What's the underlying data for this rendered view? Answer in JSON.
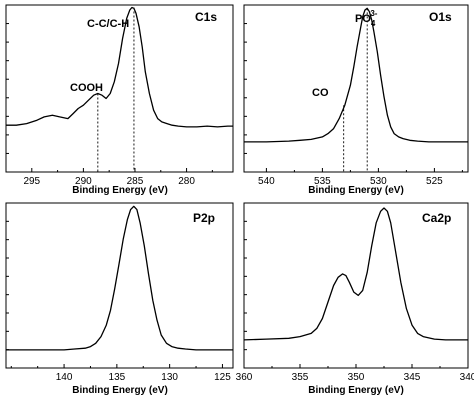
{
  "chart_data": [
    {
      "id": "c1s",
      "type": "line",
      "title": "C1s",
      "xlabel": "Binding Energy (eV)",
      "ylabel": "",
      "xlim": [
        297.5,
        275.5
      ],
      "ylim": [
        0,
        1.0
      ],
      "x_reversed": true,
      "xticks": [
        295,
        290,
        285,
        280
      ],
      "xtick_labels": [
        "295",
        "290",
        "285",
        "280"
      ],
      "series": [
        {
          "x": [
            297.5,
            296.5,
            295.5,
            294.5,
            293.8,
            293.0,
            292.3,
            291.5,
            291.0,
            290.5,
            290.0,
            289.5,
            289.0,
            288.6,
            288.2,
            287.8,
            287.4,
            287.0,
            286.6,
            286.2,
            285.8,
            285.5,
            285.3,
            285.1,
            284.9,
            284.6,
            284.3,
            284.0,
            283.6,
            283.2,
            282.8,
            282.4,
            281.9,
            281.4,
            280.8,
            280.0,
            279.0,
            278.0,
            277.0,
            276.0,
            275.5
          ],
          "y": [
            0.28,
            0.28,
            0.29,
            0.31,
            0.33,
            0.34,
            0.33,
            0.32,
            0.35,
            0.38,
            0.4,
            0.43,
            0.46,
            0.47,
            0.46,
            0.44,
            0.47,
            0.54,
            0.65,
            0.8,
            0.92,
            0.97,
            0.985,
            0.98,
            0.95,
            0.87,
            0.75,
            0.6,
            0.47,
            0.37,
            0.32,
            0.3,
            0.29,
            0.28,
            0.275,
            0.27,
            0.27,
            0.275,
            0.27,
            0.275,
            0.275
          ]
        }
      ],
      "annotations": [
        {
          "text": "COOH",
          "x": 288.6,
          "y": 0.47
        },
        {
          "text": "C-C/C-H",
          "x": 285.1,
          "y": 0.985
        }
      ]
    },
    {
      "id": "o1s",
      "type": "line",
      "title": "O1s",
      "xlabel": "Binding Energy (eV)",
      "ylabel": "",
      "xlim": [
        542,
        522
      ],
      "ylim": [
        0,
        1.0
      ],
      "x_reversed": true,
      "xticks": [
        540,
        535,
        530,
        525
      ],
      "xtick_labels": [
        "540",
        "535",
        "530",
        "525"
      ],
      "series": [
        {
          "x": [
            542,
            540,
            538,
            537,
            536,
            535,
            534.5,
            534,
            533.5,
            533,
            532.5,
            532.2,
            531.9,
            531.6,
            531.4,
            531.2,
            531.0,
            530.8,
            530.6,
            530.4,
            530.1,
            529.8,
            529.5,
            529.2,
            528.9,
            528.6,
            528.2,
            527.8,
            527.2,
            526.5,
            525.5,
            524.5,
            523.5,
            522.5,
            522
          ],
          "y": [
            0.18,
            0.18,
            0.185,
            0.19,
            0.195,
            0.21,
            0.23,
            0.26,
            0.32,
            0.4,
            0.52,
            0.63,
            0.75,
            0.86,
            0.93,
            0.97,
            0.98,
            0.96,
            0.91,
            0.84,
            0.72,
            0.58,
            0.45,
            0.34,
            0.27,
            0.23,
            0.21,
            0.2,
            0.19,
            0.185,
            0.18,
            0.18,
            0.18,
            0.18,
            0.18
          ]
        }
      ],
      "annotations": [
        {
          "text": "CO",
          "x": 533.1,
          "y": 0.4
        },
        {
          "text": "PO",
          "x": 531.0,
          "y": 0.98
        }
      ]
    },
    {
      "id": "p2p",
      "type": "line",
      "title": "P2p",
      "xlabel": "Binding Energy (eV)",
      "ylabel": "",
      "xlim": [
        145.5,
        124
      ],
      "ylim": [
        0,
        1.0
      ],
      "x_reversed": true,
      "xticks": [
        140,
        135,
        130,
        125
      ],
      "xtick_labels": [
        "140",
        "135",
        "130",
        "125"
      ],
      "series": [
        {
          "x": [
            145.5,
            143.5,
            141.5,
            140,
            139,
            138,
            137.5,
            137,
            136.5,
            136,
            135.6,
            135.2,
            134.8,
            134.4,
            134.0,
            133.7,
            133.4,
            133.1,
            132.8,
            132.4,
            132.0,
            131.6,
            131.2,
            130.8,
            130.3,
            129.8,
            129.2,
            128.5,
            127.5,
            126.5,
            125.5,
            124.5,
            124
          ],
          "y": [
            0.11,
            0.11,
            0.11,
            0.11,
            0.115,
            0.12,
            0.13,
            0.15,
            0.19,
            0.26,
            0.35,
            0.48,
            0.63,
            0.78,
            0.9,
            0.96,
            0.98,
            0.96,
            0.88,
            0.74,
            0.57,
            0.41,
            0.29,
            0.2,
            0.15,
            0.13,
            0.12,
            0.115,
            0.11,
            0.11,
            0.11,
            0.11,
            0.11
          ]
        }
      ],
      "annotations": []
    },
    {
      "id": "ca2p",
      "type": "line",
      "title": "Ca2p",
      "xlabel": "Binding Energy (eV)",
      "ylabel": "",
      "xlim": [
        360,
        340
      ],
      "ylim": [
        0,
        1.0
      ],
      "x_reversed": true,
      "xticks": [
        360,
        355,
        350,
        345,
        340
      ],
      "xtick_labels": [
        "360",
        "355",
        "350",
        "345",
        "340"
      ],
      "series": [
        {
          "x": [
            360,
            358,
            356,
            355,
            354,
            353.5,
            353,
            352.5,
            352,
            351.6,
            351.2,
            350.9,
            350.6,
            350.2,
            349.8,
            349.4,
            349.0,
            348.6,
            348.2,
            347.8,
            347.5,
            347.2,
            346.9,
            346.5,
            346.0,
            345.5,
            345.0,
            344.5,
            344.0,
            343.0,
            342.0,
            341.0,
            340
          ],
          "y": [
            0.17,
            0.175,
            0.18,
            0.19,
            0.21,
            0.24,
            0.3,
            0.4,
            0.5,
            0.55,
            0.57,
            0.56,
            0.52,
            0.46,
            0.44,
            0.47,
            0.58,
            0.74,
            0.88,
            0.95,
            0.97,
            0.95,
            0.88,
            0.72,
            0.52,
            0.36,
            0.26,
            0.21,
            0.19,
            0.175,
            0.17,
            0.17,
            0.17
          ]
        }
      ],
      "annotations": []
    }
  ],
  "labels": {
    "po4_base": "PO",
    "po4_sub": "4",
    "po4_sup": "3-"
  }
}
